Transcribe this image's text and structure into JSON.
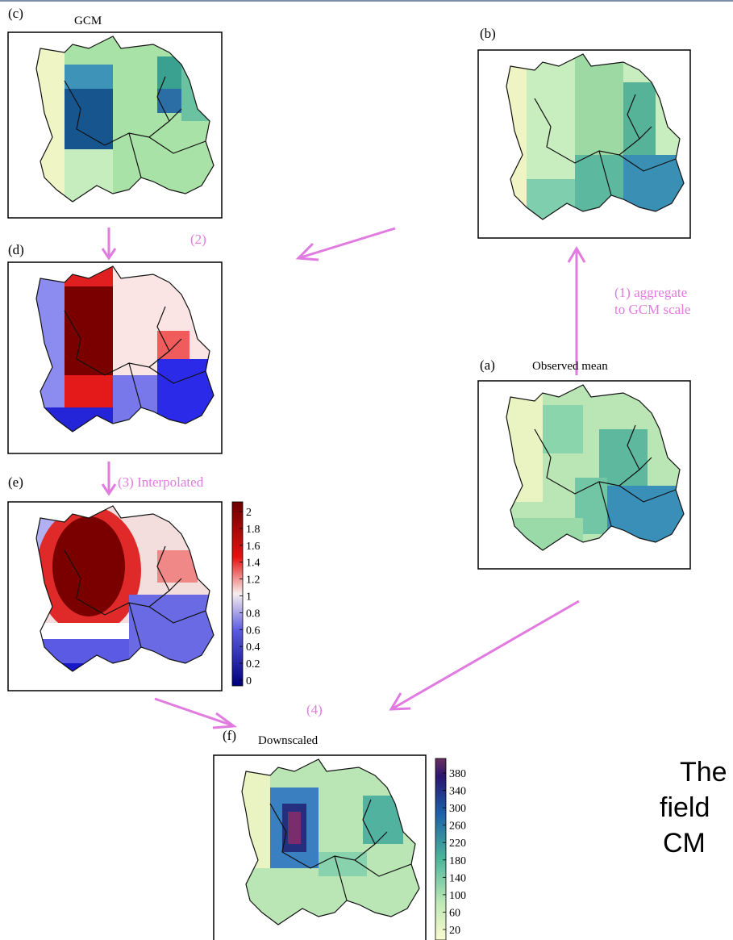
{
  "panels": {
    "c": {
      "label": "(c)",
      "title": "GCM"
    },
    "b": {
      "label": "(b)"
    },
    "d": {
      "label": "(d)"
    },
    "a": {
      "label": "(a)",
      "title": "Observed mean"
    },
    "e": {
      "label": "(e)",
      "colorbar": [
        "2",
        "1.8",
        "1.6",
        "1.4",
        "1.2",
        "1",
        "0.8",
        "0.6",
        "0.4",
        "0.2",
        "0"
      ]
    },
    "f": {
      "label": "(f)",
      "title": "Downscaled",
      "colorbar": [
        "380",
        "340",
        "300",
        "260",
        "220",
        "180",
        "140",
        "100",
        "60",
        "20"
      ]
    }
  },
  "steps": {
    "1": [
      "(1) aggregate",
      "to GCM scale"
    ],
    "2": "(2)",
    "3": "(3) Interpolated",
    "4": "(4)"
  },
  "side_text": [
    "The",
    "field",
    "CM"
  ]
}
